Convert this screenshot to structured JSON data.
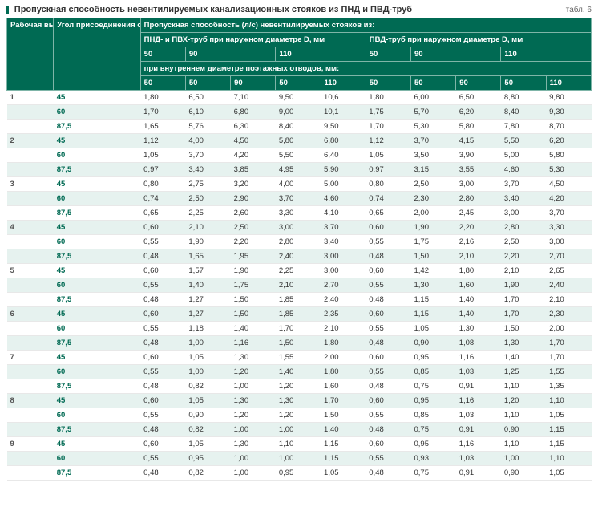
{
  "title": "Пропускная способность невентилируемых канализационных стояков из ПНД и ПВД-труб",
  "table_label": "табл. 6",
  "colors": {
    "header_bg": "#006a53",
    "header_border": "#7fb5a8",
    "zebra_bg": "#e6f2ef",
    "text": "#333333",
    "angle_text": "#006a53"
  },
  "header": {
    "col_height": "Рабочая высота стояка, м",
    "col_angle": "Угол присоединения отводов к стояку, град.",
    "span_top": "Пропускная способность (л/с) невентилируемых стояков из:",
    "span_pndpvh": "ПНД- и ПВХ-труб при наружном диаметре D, мм",
    "span_pvd": "ПВД-труб при наружном диаметре D, мм",
    "outer_diams_left": [
      "50",
      "90",
      "110"
    ],
    "outer_diams_right": [
      "50",
      "90",
      "110"
    ],
    "inner_label": "при внутреннем диаметре поэтажных отводов, мм:",
    "inner_left": [
      "50",
      "50",
      "90",
      "50",
      "110"
    ],
    "inner_right": [
      "50",
      "50",
      "90",
      "50",
      "110"
    ]
  },
  "groups": [
    {
      "h": "1",
      "rows": [
        {
          "a": "45",
          "v": [
            "1,80",
            "6,50",
            "7,10",
            "9,50",
            "10,6",
            "1,80",
            "6,00",
            "6,50",
            "8,80",
            "9,80"
          ]
        },
        {
          "a": "60",
          "v": [
            "1,70",
            "6,10",
            "6,80",
            "9,00",
            "10,1",
            "1,75",
            "5,70",
            "6,20",
            "8,40",
            "9,30"
          ]
        },
        {
          "a": "87,5",
          "v": [
            "1,65",
            "5,76",
            "6,30",
            "8,40",
            "9,50",
            "1,70",
            "5,30",
            "5,80",
            "7,80",
            "8,70"
          ]
        }
      ]
    },
    {
      "h": "2",
      "rows": [
        {
          "a": "45",
          "v": [
            "1,12",
            "4,00",
            "4,50",
            "5,80",
            "6,80",
            "1,12",
            "3,70",
            "4,15",
            "5,50",
            "6,20"
          ]
        },
        {
          "a": "60",
          "v": [
            "1,05",
            "3,70",
            "4,20",
            "5,50",
            "6,40",
            "1,05",
            "3,50",
            "3,90",
            "5,00",
            "5,80"
          ]
        },
        {
          "a": "87,5",
          "v": [
            "0,97",
            "3,40",
            "3,85",
            "4,95",
            "5,90",
            "0,97",
            "3,15",
            "3,55",
            "4,60",
            "5,30"
          ]
        }
      ]
    },
    {
      "h": "3",
      "rows": [
        {
          "a": "45",
          "v": [
            "0,80",
            "2,75",
            "3,20",
            "4,00",
            "5,00",
            "0,80",
            "2,50",
            "3,00",
            "3,70",
            "4,50"
          ]
        },
        {
          "a": "60",
          "v": [
            "0,74",
            "2,50",
            "2,90",
            "3,70",
            "4,60",
            "0,74",
            "2,30",
            "2,80",
            "3,40",
            "4,20"
          ]
        },
        {
          "a": "87,5",
          "v": [
            "0,65",
            "2,25",
            "2,60",
            "3,30",
            "4,10",
            "0,65",
            "2,00",
            "2,45",
            "3,00",
            "3,70"
          ]
        }
      ]
    },
    {
      "h": "4",
      "rows": [
        {
          "a": "45",
          "v": [
            "0,60",
            "2,10",
            "2,50",
            "3,00",
            "3,70",
            "0,60",
            "1,90",
            "2,20",
            "2,80",
            "3,30"
          ]
        },
        {
          "a": "60",
          "v": [
            "0,55",
            "1,90",
            "2,20",
            "2,80",
            "3,40",
            "0,55",
            "1,75",
            "2,16",
            "2,50",
            "3,00"
          ]
        },
        {
          "a": "87,5",
          "v": [
            "0,48",
            "1,65",
            "1,95",
            "2,40",
            "3,00",
            "0,48",
            "1,50",
            "2,10",
            "2,20",
            "2,70"
          ]
        }
      ]
    },
    {
      "h": "5",
      "rows": [
        {
          "a": "45",
          "v": [
            "0,60",
            "1,57",
            "1,90",
            "2,25",
            "3,00",
            "0,60",
            "1,42",
            "1,80",
            "2,10",
            "2,65"
          ]
        },
        {
          "a": "60",
          "v": [
            "0,55",
            "1,40",
            "1,75",
            "2,10",
            "2,70",
            "0,55",
            "1,30",
            "1,60",
            "1,90",
            "2,40"
          ]
        },
        {
          "a": "87,5",
          "v": [
            "0,48",
            "1,27",
            "1,50",
            "1,85",
            "2,40",
            "0,48",
            "1,15",
            "1,40",
            "1,70",
            "2,10"
          ]
        }
      ]
    },
    {
      "h": "6",
      "rows": [
        {
          "a": "45",
          "v": [
            "0,60",
            "1,27",
            "1,50",
            "1,85",
            "2,35",
            "0,60",
            "1,15",
            "1,40",
            "1,70",
            "2,30"
          ]
        },
        {
          "a": "60",
          "v": [
            "0,55",
            "1,18",
            "1,40",
            "1,70",
            "2,10",
            "0,55",
            "1,05",
            "1,30",
            "1,50",
            "2,00"
          ]
        },
        {
          "a": "87,5",
          "v": [
            "0,48",
            "1,00",
            "1,16",
            "1,50",
            "1,80",
            "0,48",
            "0,90",
            "1,08",
            "1,30",
            "1,70"
          ]
        }
      ]
    },
    {
      "h": "7",
      "rows": [
        {
          "a": "45",
          "v": [
            "0,60",
            "1,05",
            "1,30",
            "1,55",
            "2,00",
            "0,60",
            "0,95",
            "1,16",
            "1,40",
            "1,70"
          ]
        },
        {
          "a": "60",
          "v": [
            "0,55",
            "1,00",
            "1,20",
            "1,40",
            "1,80",
            "0,55",
            "0,85",
            "1,03",
            "1,25",
            "1,55"
          ]
        },
        {
          "a": "87,5",
          "v": [
            "0,48",
            "0,82",
            "1,00",
            "1,20",
            "1,60",
            "0,48",
            "0,75",
            "0,91",
            "1,10",
            "1,35"
          ]
        }
      ]
    },
    {
      "h": "8",
      "rows": [
        {
          "a": "45",
          "v": [
            "0,60",
            "1,05",
            "1,30",
            "1,30",
            "1,70",
            "0,60",
            "0,95",
            "1,16",
            "1,20",
            "1,10"
          ]
        },
        {
          "a": "60",
          "v": [
            "0,55",
            "0,90",
            "1,20",
            "1,20",
            "1,50",
            "0,55",
            "0,85",
            "1,03",
            "1,10",
            "1,05"
          ]
        },
        {
          "a": "87,5",
          "v": [
            "0,48",
            "0,82",
            "1,00",
            "1,00",
            "1,40",
            "0,48",
            "0,75",
            "0,91",
            "0,90",
            "1,15"
          ]
        }
      ]
    },
    {
      "h": "9",
      "rows": [
        {
          "a": "45",
          "v": [
            "0,60",
            "1,05",
            "1,30",
            "1,10",
            "1,15",
            "0,60",
            "0,95",
            "1,16",
            "1,10",
            "1,15"
          ]
        },
        {
          "a": "60",
          "v": [
            "0,55",
            "0,95",
            "1,00",
            "1,00",
            "1,15",
            "0,55",
            "0,93",
            "1,03",
            "1,00",
            "1,10"
          ]
        },
        {
          "a": "87,5",
          "v": [
            "0,48",
            "0,82",
            "1,00",
            "0,95",
            "1,05",
            "0,48",
            "0,75",
            "0,91",
            "0,90",
            "1,05"
          ]
        }
      ]
    }
  ]
}
